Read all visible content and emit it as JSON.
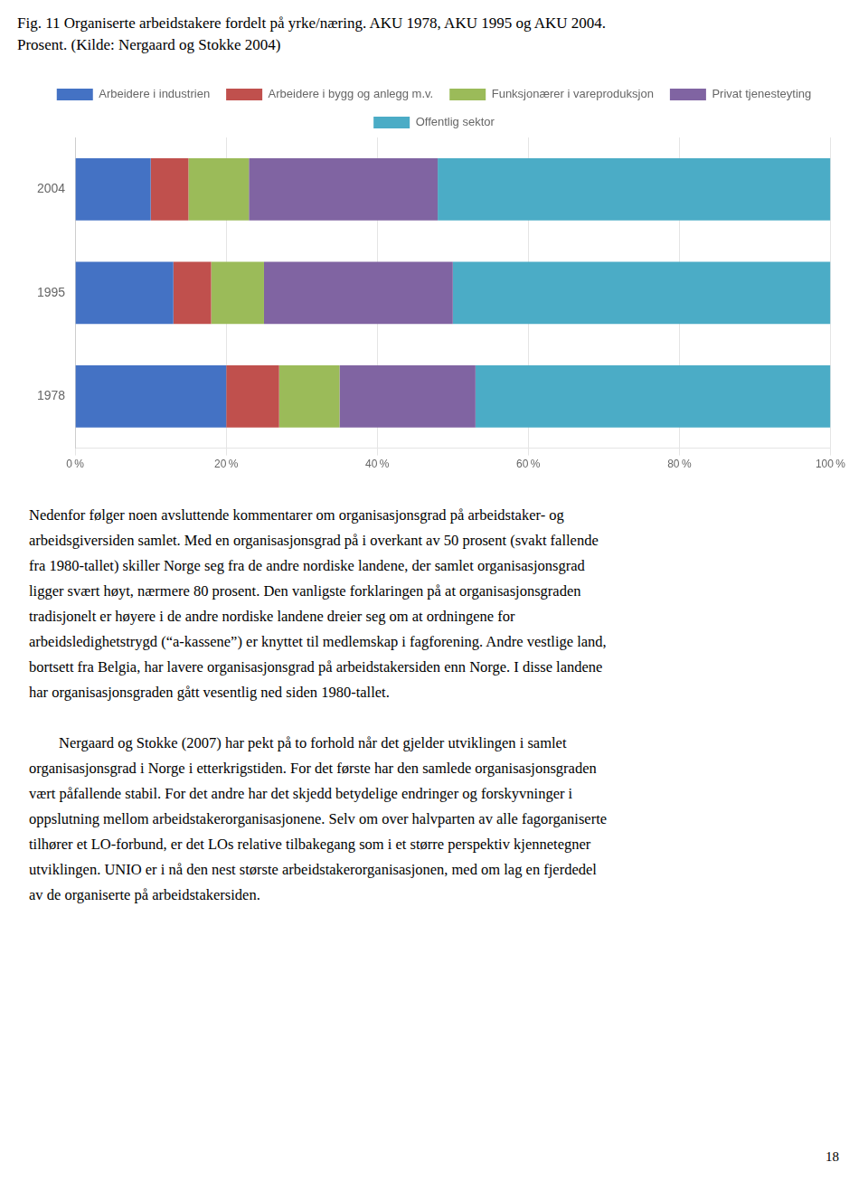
{
  "chart_data": {
    "type": "bar",
    "orientation": "horizontal",
    "stacked": true,
    "title": "Fig. 11 Organiserte arbeidstakere fordelt på yrke/næring. AKU 1978, AKU 1995 og AKU 2004.",
    "subtitle": "Prosent. (Kilde: Nergaard og Stokke 2004)",
    "categories": [
      "2004",
      "1995",
      "1978"
    ],
    "series": [
      {
        "name": "Arbeidere i industrien",
        "color": "#4472C4",
        "values": [
          10,
          13,
          20
        ]
      },
      {
        "name": "Arbeidere i bygg og anlegg m.v.",
        "color": "#C0504D",
        "values": [
          5,
          5,
          7
        ]
      },
      {
        "name": "Funksjonærer i vareproduksjon",
        "color": "#9BBB59",
        "values": [
          8,
          7,
          8
        ]
      },
      {
        "name": "Privat tjenesteyting",
        "color": "#8064A2",
        "values": [
          25,
          25,
          18
        ]
      },
      {
        "name": "Offentlig sektor",
        "color": "#4BACC6",
        "values": [
          52,
          50,
          47
        ]
      }
    ],
    "xlim": [
      0,
      100
    ],
    "xticks": [
      {
        "value": 0,
        "label": "0 %"
      },
      {
        "value": 20,
        "label": "20 %"
      },
      {
        "value": 40,
        "label": "40 %"
      },
      {
        "value": 60,
        "label": "60 %"
      },
      {
        "value": 80,
        "label": "80 %"
      },
      {
        "value": 100,
        "label": "100 %"
      }
    ],
    "grid": true,
    "legend": "top",
    "annotations": {
      "body": [
        [
          "Nedenfor følger noen avsluttende kommentarer om organisasjonsgrad på arbeidstaker- og",
          "arbeidsgiversiden samlet. Med en organisasjonsgrad på i overkant av 50 prosent (svakt fallende",
          "fra 1980-tallet) skiller Norge seg fra de andre nordiske landene, der samlet organisasjonsgrad",
          "ligger svært høyt, nærmere 80 prosent. Den vanligste forklaringen på at organisasjonsgraden",
          "tradisjonelt er høyere i de andre nordiske landene dreier seg om at ordningene for",
          "arbeidsledighetstrygd (“a-kassene”) er knyttet til medlemskap i fagforening. Andre vestlige land,",
          "bortsett fra Belgia, har lavere organisasjonsgrad på arbeidstakersiden enn Norge. I disse landene",
          "har organisasjonsgraden gått vesentlig ned siden 1980-tallet."
        ],
        [
          "        Nergaard og Stokke (2007) har pekt på to forhold når det gjelder utviklingen i samlet",
          "organisasjonsgrad i Norge i etterkrigstiden. For det første har den samlede organisasjonsgraden",
          "vært påfallende stabil. For det andre har det skjedd betydelige endringer og forskyvninger i",
          "oppslutning mellom arbeidstakerorganisasjonene. Selv om over halvparten av alle fagorganiserte",
          "tilhører et LO-forbund, er det LOs relative tilbakegang som i et større perspektiv kjennetegner",
          "utviklingen. UNIO er i nå den nest største arbeidstakerorganisasjonen, med om lag en fjerdedel",
          "av de organiserte på arbeidstakersiden."
        ]
      ],
      "page": "18"
    }
  }
}
